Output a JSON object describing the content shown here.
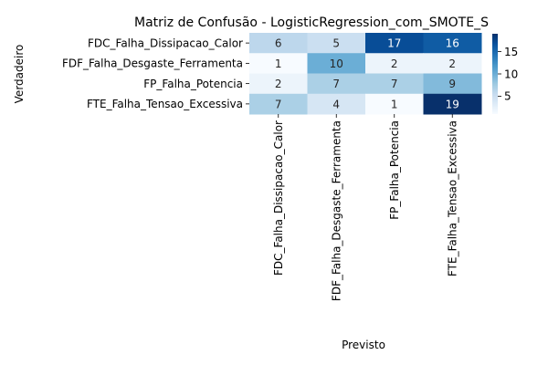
{
  "chart_data": {
    "type": "heatmap",
    "title": "Matriz de Confusão - LogisticRegression_com_SMOTE_S",
    "xlabel": "Previsto",
    "ylabel": "Verdadeiro",
    "x_categories": [
      "FDC_Falha_Dissipacao_Calor",
      "FDF_Falha_Desgaste_Ferramenta",
      "FP_Falha_Potencia",
      "FTE_Falha_Tensao_Excessiva"
    ],
    "y_categories": [
      "FDC_Falha_Dissipacao_Calor",
      "FDF_Falha_Desgaste_Ferramenta",
      "FP_Falha_Potencia",
      "FTE_Falha_Tensao_Excessiva"
    ],
    "values": [
      [
        6,
        5,
        17,
        16
      ],
      [
        1,
        10,
        2,
        2
      ],
      [
        2,
        7,
        7,
        9
      ],
      [
        7,
        4,
        1,
        19
      ]
    ],
    "colorbar": {
      "min": 1,
      "max": 19,
      "ticks": [
        5,
        10,
        15
      ],
      "colormap": "Blues"
    },
    "colors": {
      "low": "#f7fbff",
      "high": "#08306b"
    }
  }
}
